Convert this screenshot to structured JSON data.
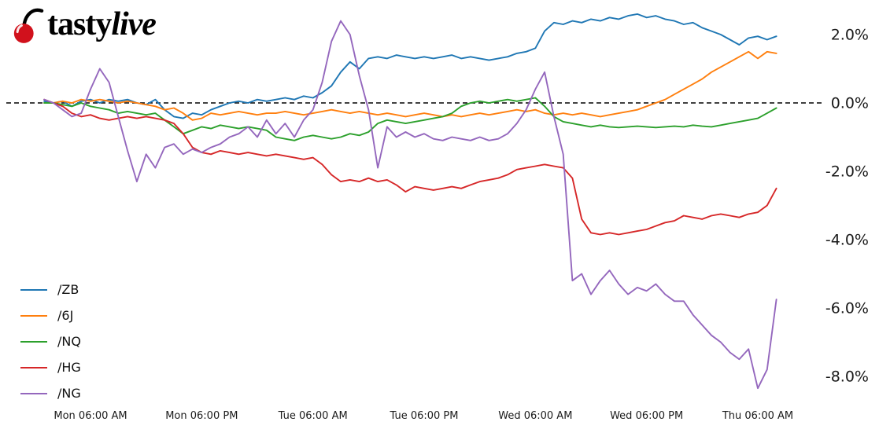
{
  "brand": {
    "tasty": "tasty",
    "live": "live"
  },
  "colors": {
    "background": "#ffffff",
    "zero_line": "#000000",
    "tick_text": "#1a1a1a"
  },
  "chart_data": {
    "type": "line",
    "title": "",
    "xlabel": "",
    "ylabel": "",
    "x_unit": "hours relative to Mon 06:00 AM",
    "ylim": [
      -8.8,
      2.9
    ],
    "grid": false,
    "zero_line_dashed": true,
    "legend_position": "lower-left",
    "x": [
      -5,
      -4,
      -3,
      -2,
      -1,
      0,
      1,
      2,
      3,
      4,
      5,
      6,
      7,
      8,
      9,
      10,
      11,
      12,
      13,
      14,
      15,
      16,
      17,
      18,
      19,
      20,
      21,
      22,
      23,
      24,
      25,
      26,
      27,
      28,
      29,
      30,
      31,
      32,
      33,
      34,
      35,
      36,
      37,
      38,
      39,
      40,
      41,
      42,
      43,
      44,
      45,
      46,
      47,
      48,
      49,
      50,
      51,
      52,
      53,
      54,
      55,
      56,
      57,
      58,
      59,
      60,
      61,
      62,
      63,
      64,
      65,
      66,
      67,
      68,
      69,
      70,
      71,
      72,
      73,
      74
    ],
    "x_ticks": {
      "hours": [
        0,
        12,
        24,
        36,
        48,
        60,
        72
      ],
      "labels": [
        "Mon 06:00 AM",
        "Mon 06:00 PM",
        "Tue 06:00 AM",
        "Tue 06:00 PM",
        "Wed 06:00 AM",
        "Wed 06:00 PM",
        "Thu 06:00 AM"
      ]
    },
    "y_ticks": {
      "values": [
        2.0,
        0.0,
        -2.0,
        -4.0,
        -6.0,
        -8.0
      ],
      "labels": [
        "2.0%",
        "0.0%",
        "-2.0%",
        "-4.0%",
        "-6.0%",
        "-8.0%"
      ]
    },
    "series": [
      {
        "name": "/ZB",
        "color": "#1f77b4",
        "values": [
          0.05,
          0.0,
          0.05,
          -0.1,
          0.05,
          0.1,
          0.0,
          0.1,
          0.05,
          0.1,
          0.0,
          -0.05,
          0.1,
          -0.2,
          -0.4,
          -0.45,
          -0.3,
          -0.35,
          -0.2,
          -0.1,
          0.0,
          0.05,
          0.0,
          0.1,
          0.05,
          0.1,
          0.15,
          0.1,
          0.2,
          0.15,
          0.3,
          0.5,
          0.9,
          1.2,
          1.0,
          1.3,
          1.35,
          1.3,
          1.4,
          1.35,
          1.3,
          1.35,
          1.3,
          1.35,
          1.4,
          1.3,
          1.35,
          1.3,
          1.25,
          1.3,
          1.35,
          1.45,
          1.5,
          1.6,
          2.1,
          2.35,
          2.3,
          2.4,
          2.35,
          2.45,
          2.4,
          2.5,
          2.45,
          2.55,
          2.6,
          2.5,
          2.55,
          2.45,
          2.4,
          2.3,
          2.35,
          2.2,
          2.1,
          2.0,
          1.85,
          1.7,
          1.9,
          1.95,
          1.85,
          1.95
        ]
      },
      {
        "name": "/6J",
        "color": "#ff7f0e",
        "values": [
          0.0,
          0.0,
          0.05,
          0.0,
          0.1,
          0.05,
          0.1,
          0.05,
          0.0,
          0.05,
          0.0,
          -0.05,
          -0.1,
          -0.2,
          -0.15,
          -0.3,
          -0.5,
          -0.45,
          -0.3,
          -0.35,
          -0.3,
          -0.25,
          -0.3,
          -0.35,
          -0.3,
          -0.3,
          -0.25,
          -0.3,
          -0.35,
          -0.3,
          -0.25,
          -0.2,
          -0.25,
          -0.3,
          -0.25,
          -0.3,
          -0.35,
          -0.3,
          -0.35,
          -0.4,
          -0.35,
          -0.3,
          -0.35,
          -0.4,
          -0.35,
          -0.4,
          -0.35,
          -0.3,
          -0.35,
          -0.3,
          -0.25,
          -0.2,
          -0.25,
          -0.2,
          -0.3,
          -0.35,
          -0.3,
          -0.35,
          -0.3,
          -0.35,
          -0.4,
          -0.35,
          -0.3,
          -0.25,
          -0.2,
          -0.1,
          0.0,
          0.1,
          0.25,
          0.4,
          0.55,
          0.7,
          0.9,
          1.05,
          1.2,
          1.35,
          1.5,
          1.3,
          1.5,
          1.45
        ]
      },
      {
        "name": "/NQ",
        "color": "#2ca02c",
        "values": [
          0.0,
          0.0,
          -0.05,
          -0.1,
          0.0,
          -0.1,
          -0.15,
          -0.2,
          -0.3,
          -0.25,
          -0.3,
          -0.35,
          -0.3,
          -0.5,
          -0.7,
          -0.9,
          -0.8,
          -0.7,
          -0.75,
          -0.65,
          -0.7,
          -0.75,
          -0.7,
          -0.75,
          -0.8,
          -1.0,
          -1.05,
          -1.1,
          -1.0,
          -0.95,
          -1.0,
          -1.05,
          -1.0,
          -0.9,
          -0.95,
          -0.85,
          -0.6,
          -0.5,
          -0.55,
          -0.6,
          -0.55,
          -0.5,
          -0.45,
          -0.4,
          -0.3,
          -0.1,
          0.0,
          0.05,
          0.0,
          0.05,
          0.1,
          0.05,
          0.1,
          0.15,
          -0.1,
          -0.4,
          -0.55,
          -0.6,
          -0.65,
          -0.7,
          -0.65,
          -0.7,
          -0.72,
          -0.7,
          -0.68,
          -0.7,
          -0.72,
          -0.7,
          -0.68,
          -0.7,
          -0.65,
          -0.68,
          -0.7,
          -0.65,
          -0.6,
          -0.55,
          -0.5,
          -0.45,
          -0.3,
          -0.15
        ]
      },
      {
        "name": "/HG",
        "color": "#d62728",
        "values": [
          0.1,
          0.0,
          -0.1,
          -0.3,
          -0.4,
          -0.35,
          -0.45,
          -0.5,
          -0.45,
          -0.4,
          -0.45,
          -0.4,
          -0.45,
          -0.5,
          -0.6,
          -0.9,
          -1.3,
          -1.45,
          -1.5,
          -1.4,
          -1.45,
          -1.5,
          -1.45,
          -1.5,
          -1.55,
          -1.5,
          -1.55,
          -1.6,
          -1.65,
          -1.6,
          -1.8,
          -2.1,
          -2.3,
          -2.25,
          -2.3,
          -2.2,
          -2.3,
          -2.25,
          -2.4,
          -2.6,
          -2.45,
          -2.5,
          -2.55,
          -2.5,
          -2.45,
          -2.5,
          -2.4,
          -2.3,
          -2.25,
          -2.2,
          -2.1,
          -1.95,
          -1.9,
          -1.85,
          -1.8,
          -1.85,
          -1.9,
          -2.2,
          -3.4,
          -3.8,
          -3.85,
          -3.8,
          -3.85,
          -3.8,
          -3.75,
          -3.7,
          -3.6,
          -3.5,
          -3.45,
          -3.3,
          -3.35,
          -3.4,
          -3.3,
          -3.25,
          -3.3,
          -3.35,
          -3.25,
          -3.2,
          -3.0,
          -2.5
        ]
      },
      {
        "name": "/NG",
        "color": "#9467bd",
        "values": [
          0.1,
          0.0,
          -0.2,
          -0.4,
          -0.3,
          0.4,
          1.0,
          0.6,
          -0.4,
          -1.4,
          -2.3,
          -1.5,
          -1.9,
          -1.3,
          -1.2,
          -1.5,
          -1.35,
          -1.45,
          -1.3,
          -1.2,
          -1.0,
          -0.9,
          -0.7,
          -1.0,
          -0.5,
          -0.9,
          -0.6,
          -1.0,
          -0.5,
          -0.2,
          0.6,
          1.8,
          2.4,
          2.0,
          0.8,
          -0.2,
          -1.9,
          -0.7,
          -1.0,
          -0.85,
          -1.0,
          -0.9,
          -1.05,
          -1.1,
          -1.0,
          -1.05,
          -1.1,
          -1.0,
          -1.1,
          -1.05,
          -0.9,
          -0.6,
          -0.2,
          0.4,
          0.9,
          -0.4,
          -1.5,
          -5.2,
          -5.0,
          -5.6,
          -5.2,
          -4.9,
          -5.3,
          -5.6,
          -5.4,
          -5.5,
          -5.3,
          -5.6,
          -5.8,
          -5.8,
          -6.2,
          -6.5,
          -6.8,
          -7.0,
          -7.3,
          -7.5,
          -7.2,
          -8.35,
          -7.8,
          -5.75
        ]
      }
    ]
  }
}
